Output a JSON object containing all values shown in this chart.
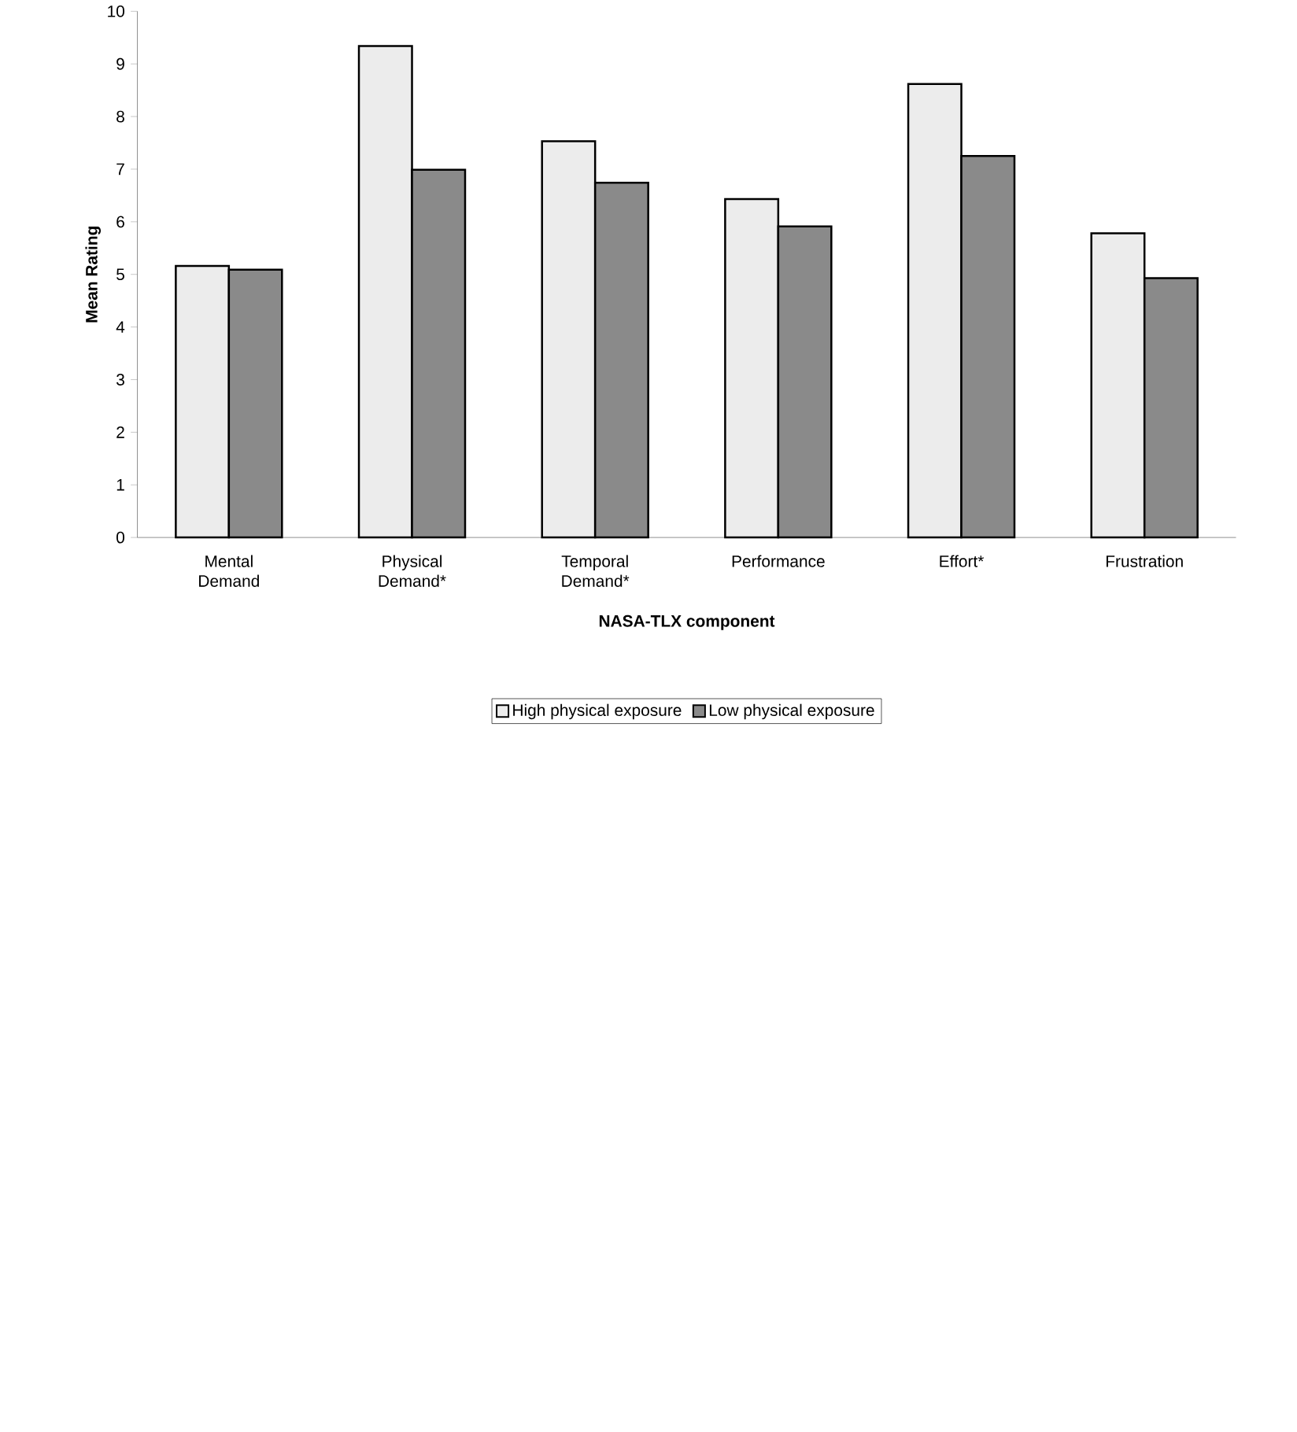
{
  "chart_data": {
    "type": "bar",
    "xlabel": "NASA-TLX component",
    "ylabel": "Mean Rating",
    "categories": [
      "Mental Demand",
      "Physical Demand*",
      "Temporal Demand*",
      "Performance",
      "Effort*",
      "Frustration"
    ],
    "series": [
      {
        "name": "High physical exposure",
        "color": "#ececec",
        "values": [
          5.16,
          9.34,
          7.53,
          6.43,
          8.62,
          5.78
        ]
      },
      {
        "name": "Low physical exposure",
        "color": "#8a8a8a",
        "values": [
          5.09,
          6.99,
          6.74,
          5.91,
          7.25,
          4.93
        ]
      }
    ],
    "ylim": [
      0,
      10
    ],
    "yticks": [
      0,
      1,
      2,
      3,
      4,
      5,
      6,
      7,
      8,
      9,
      10
    ],
    "grid": false,
    "legend": "bottom"
  }
}
